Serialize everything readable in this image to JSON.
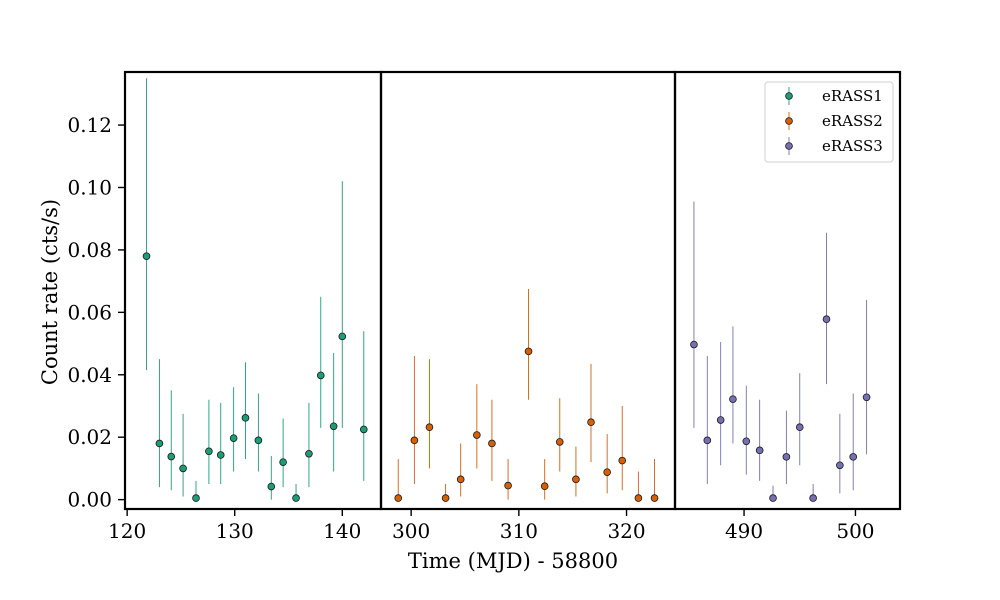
{
  "chart_data": {
    "type": "scatter",
    "xlabel": "Time (MJD) - 58800",
    "ylabel": "Count rate (cts/s)",
    "ylim": [
      -0.003,
      0.137
    ],
    "yticks": [
      0.0,
      0.02,
      0.04,
      0.06,
      0.08,
      0.1,
      0.12
    ],
    "ytick_labels": [
      "0.00",
      "0.02",
      "0.04",
      "0.06",
      "0.08",
      "0.10",
      "0.12"
    ],
    "legend_placement": "top-right",
    "panels": [
      {
        "xlim": [
          119.8,
          143.6
        ],
        "xticks": [
          120,
          130,
          140
        ],
        "xtick_labels": [
          "120",
          "130",
          "140"
        ],
        "series_index": 0
      },
      {
        "xlim": [
          297.2,
          324.5
        ],
        "xticks": [
          300,
          310,
          320
        ],
        "xtick_labels": [
          "300",
          "310",
          "320"
        ],
        "series_index": 1
      },
      {
        "xlim": [
          483.8,
          504.0
        ],
        "xticks": [
          490,
          500
        ],
        "xtick_labels": [
          "490",
          "500"
        ],
        "series_index": 2
      }
    ],
    "series": [
      {
        "name": "eRASS1",
        "color": "#1b9e77",
        "points": [
          {
            "x": 121.8,
            "y": 0.078,
            "lo": 0.0415,
            "hi": 0.135
          },
          {
            "x": 123.0,
            "y": 0.018,
            "lo": 0.004,
            "hi": 0.045
          },
          {
            "x": 124.1,
            "y": 0.0138,
            "lo": 0.003,
            "hi": 0.035
          },
          {
            "x": 125.2,
            "y": 0.01,
            "lo": 0.001,
            "hi": 0.0275
          },
          {
            "x": 126.4,
            "y": 0.0005,
            "lo": 0.0,
            "hi": 0.006
          },
          {
            "x": 127.6,
            "y": 0.0155,
            "lo": 0.005,
            "hi": 0.032
          },
          {
            "x": 128.7,
            "y": 0.0143,
            "lo": 0.005,
            "hi": 0.031
          },
          {
            "x": 129.9,
            "y": 0.0197,
            "lo": 0.009,
            "hi": 0.036
          },
          {
            "x": 131.0,
            "y": 0.0262,
            "lo": 0.013,
            "hi": 0.044
          },
          {
            "x": 132.2,
            "y": 0.019,
            "lo": 0.009,
            "hi": 0.034
          },
          {
            "x": 133.4,
            "y": 0.0042,
            "lo": 0.0,
            "hi": 0.014
          },
          {
            "x": 134.5,
            "y": 0.012,
            "lo": 0.004,
            "hi": 0.026
          },
          {
            "x": 135.7,
            "y": 0.0005,
            "lo": 0.0,
            "hi": 0.005
          },
          {
            "x": 136.9,
            "y": 0.0147,
            "lo": 0.004,
            "hi": 0.031
          },
          {
            "x": 138.0,
            "y": 0.0398,
            "lo": 0.023,
            "hi": 0.065
          },
          {
            "x": 139.2,
            "y": 0.0235,
            "lo": 0.009,
            "hi": 0.047
          },
          {
            "x": 140.0,
            "y": 0.0523,
            "lo": 0.023,
            "hi": 0.102
          },
          {
            "x": 142.0,
            "y": 0.0225,
            "lo": 0.006,
            "hi": 0.054
          }
        ]
      },
      {
        "name": "eRASS2",
        "color": "#d95f02",
        "points": [
          {
            "x": 298.8,
            "y": 0.0005,
            "lo": 0.0,
            "hi": 0.013
          },
          {
            "x": 300.3,
            "y": 0.019,
            "lo": 0.005,
            "hi": 0.046
          },
          {
            "x": 301.7,
            "y": 0.0232,
            "lo": 0.01,
            "hi": 0.045
          },
          {
            "x": 303.2,
            "y": 0.0005,
            "lo": 0.0,
            "hi": 0.005
          },
          {
            "x": 304.6,
            "y": 0.0065,
            "lo": 0.001,
            "hi": 0.018
          },
          {
            "x": 306.1,
            "y": 0.0207,
            "lo": 0.01,
            "hi": 0.037
          },
          {
            "x": 307.5,
            "y": 0.018,
            "lo": 0.006,
            "hi": 0.032
          },
          {
            "x": 309.0,
            "y": 0.0045,
            "lo": 0.0,
            "hi": 0.013
          },
          {
            "x": 310.9,
            "y": 0.0475,
            "lo": 0.032,
            "hi": 0.0675
          },
          {
            "x": 312.4,
            "y": 0.0043,
            "lo": 0.0,
            "hi": 0.013
          },
          {
            "x": 313.8,
            "y": 0.0185,
            "lo": 0.009,
            "hi": 0.0325
          },
          {
            "x": 315.3,
            "y": 0.0065,
            "lo": 0.001,
            "hi": 0.017
          },
          {
            "x": 316.7,
            "y": 0.0248,
            "lo": 0.012,
            "hi": 0.0435
          },
          {
            "x": 318.2,
            "y": 0.0088,
            "lo": 0.002,
            "hi": 0.021
          },
          {
            "x": 319.6,
            "y": 0.0125,
            "lo": 0.003,
            "hi": 0.03
          },
          {
            "x": 321.1,
            "y": 0.0005,
            "lo": 0.0,
            "hi": 0.009
          },
          {
            "x": 322.6,
            "y": 0.0005,
            "lo": 0.0,
            "hi": 0.013
          }
        ]
      },
      {
        "name": "eRASS3",
        "color": "#7570b3",
        "points": [
          {
            "x": 485.5,
            "y": 0.0497,
            "lo": 0.023,
            "hi": 0.0955
          },
          {
            "x": 486.7,
            "y": 0.019,
            "lo": 0.005,
            "hi": 0.046
          },
          {
            "x": 487.9,
            "y": 0.0255,
            "lo": 0.011,
            "hi": 0.0505
          },
          {
            "x": 489.0,
            "y": 0.0322,
            "lo": 0.018,
            "hi": 0.0555
          },
          {
            "x": 490.2,
            "y": 0.0187,
            "lo": 0.008,
            "hi": 0.0365
          },
          {
            "x": 491.4,
            "y": 0.0158,
            "lo": 0.006,
            "hi": 0.032
          },
          {
            "x": 492.6,
            "y": 0.0005,
            "lo": 0.0,
            "hi": 0.0045
          },
          {
            "x": 493.8,
            "y": 0.0137,
            "lo": 0.005,
            "hi": 0.0285
          },
          {
            "x": 495.0,
            "y": 0.0232,
            "lo": 0.011,
            "hi": 0.0405
          },
          {
            "x": 496.2,
            "y": 0.0005,
            "lo": 0.0,
            "hi": 0.005
          },
          {
            "x": 497.4,
            "y": 0.0578,
            "lo": 0.037,
            "hi": 0.0855
          },
          {
            "x": 498.6,
            "y": 0.011,
            "lo": 0.002,
            "hi": 0.0275
          },
          {
            "x": 499.8,
            "y": 0.0137,
            "lo": 0.003,
            "hi": 0.034
          },
          {
            "x": 501.0,
            "y": 0.0328,
            "lo": 0.0145,
            "hi": 0.064
          }
        ]
      }
    ]
  }
}
